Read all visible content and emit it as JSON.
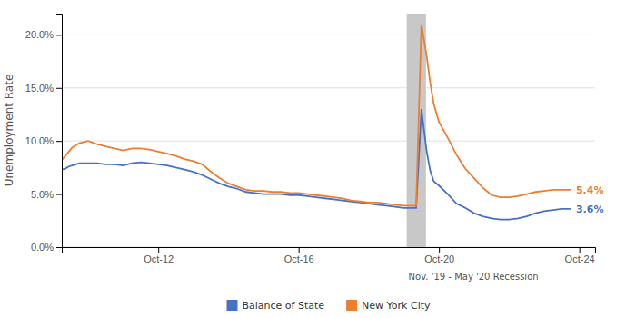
{
  "chart_data": {
    "type": "line",
    "ylabel": "Unemployment Rate",
    "xlim": [
      2010.0,
      2025.2
    ],
    "xticks": [
      {
        "value": 2012.75,
        "label": "Oct-12"
      },
      {
        "value": 2016.75,
        "label": "Oct-16"
      },
      {
        "value": 2020.75,
        "label": "Oct-20"
      },
      {
        "value": 2024.75,
        "label": "Oct-24"
      }
    ],
    "ylim": [
      0.0,
      0.22
    ],
    "yticks": [
      {
        "value": 0.0,
        "label": "0.0%"
      },
      {
        "value": 0.05,
        "label": "5.0%"
      },
      {
        "value": 0.1,
        "label": "10.0%"
      },
      {
        "value": 0.15,
        "label": "15.0%"
      },
      {
        "value": 0.2,
        "label": "20.0%"
      }
    ],
    "grid": "y",
    "legend": "bottom",
    "recession": {
      "start": 2019.83,
      "end": 2020.38,
      "label": "Nov. '19 - May '20 Recession",
      "color": "#c8c8c8"
    },
    "annotations": [
      {
        "text": "5.4%",
        "x": 2024.5,
        "y": 0.054,
        "color": "#ed7d31"
      },
      {
        "text": "3.6%",
        "x": 2024.5,
        "y": 0.036,
        "color": "#4472c4"
      }
    ],
    "x": [
      2010.0,
      2010.1,
      2010.2,
      2010.3,
      2010.5,
      2010.75,
      2011.0,
      2011.25,
      2011.5,
      2011.75,
      2012.0,
      2012.25,
      2012.5,
      2012.75,
      2013.0,
      2013.25,
      2013.5,
      2013.75,
      2014.0,
      2014.25,
      2014.5,
      2014.75,
      2015.0,
      2015.25,
      2015.5,
      2015.75,
      2016.0,
      2016.25,
      2016.5,
      2016.75,
      2017.0,
      2017.25,
      2017.5,
      2017.75,
      2018.0,
      2018.25,
      2018.5,
      2018.75,
      2019.0,
      2019.25,
      2019.5,
      2019.75,
      2019.9,
      2020.1,
      2020.25,
      2020.4,
      2020.5,
      2020.6,
      2020.75,
      2021.0,
      2021.25,
      2021.5,
      2021.75,
      2022.0,
      2022.25,
      2022.5,
      2022.75,
      2023.0,
      2023.25,
      2023.5,
      2023.75,
      2024.0,
      2024.25,
      2024.5
    ],
    "series": [
      {
        "name": "Balance of State",
        "color": "#4472c4",
        "values": [
          0.073,
          0.074,
          0.076,
          0.077,
          0.079,
          0.079,
          0.079,
          0.078,
          0.078,
          0.077,
          0.079,
          0.08,
          0.079,
          0.078,
          0.077,
          0.075,
          0.073,
          0.071,
          0.068,
          0.064,
          0.06,
          0.057,
          0.055,
          0.052,
          0.051,
          0.05,
          0.05,
          0.05,
          0.049,
          0.049,
          0.048,
          0.047,
          0.046,
          0.045,
          0.044,
          0.043,
          0.042,
          0.041,
          0.04,
          0.039,
          0.038,
          0.037,
          0.037,
          0.037,
          0.13,
          0.09,
          0.072,
          0.062,
          0.058,
          0.05,
          0.041,
          0.037,
          0.032,
          0.029,
          0.027,
          0.026,
          0.026,
          0.027,
          0.029,
          0.032,
          0.034,
          0.035,
          0.036,
          0.036
        ]
      },
      {
        "name": "New York City",
        "color": "#ed7d31",
        "values": [
          0.082,
          0.086,
          0.09,
          0.094,
          0.098,
          0.1,
          0.097,
          0.095,
          0.093,
          0.091,
          0.093,
          0.093,
          0.092,
          0.09,
          0.088,
          0.086,
          0.083,
          0.081,
          0.078,
          0.071,
          0.065,
          0.06,
          0.057,
          0.054,
          0.053,
          0.053,
          0.052,
          0.052,
          0.051,
          0.051,
          0.05,
          0.049,
          0.048,
          0.047,
          0.046,
          0.044,
          0.043,
          0.042,
          0.042,
          0.041,
          0.04,
          0.039,
          0.039,
          0.039,
          0.21,
          0.18,
          0.155,
          0.135,
          0.118,
          0.103,
          0.087,
          0.074,
          0.065,
          0.056,
          0.049,
          0.047,
          0.047,
          0.048,
          0.05,
          0.052,
          0.053,
          0.054,
          0.054,
          0.054
        ]
      }
    ]
  }
}
